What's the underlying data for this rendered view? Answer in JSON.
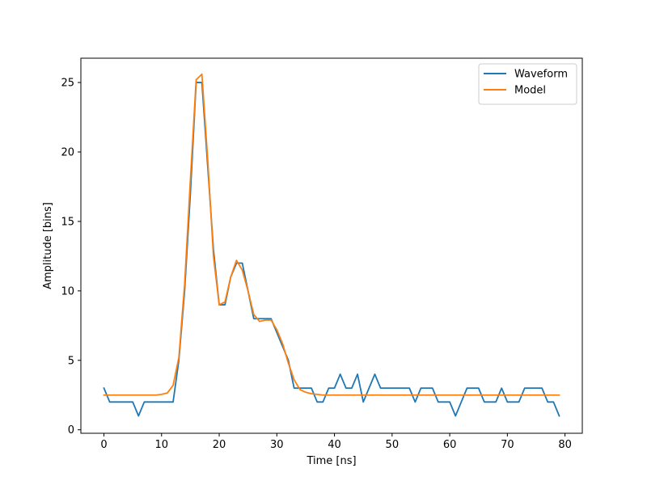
{
  "chart_data": {
    "type": "line",
    "xlabel": "Time [ns]",
    "ylabel": "Amplitude [bins]",
    "xlim": [
      -4,
      83
    ],
    "ylim": [
      -0.25,
      26.75
    ],
    "xticks": [
      0,
      10,
      20,
      30,
      40,
      50,
      60,
      70,
      80
    ],
    "yticks": [
      0,
      5,
      10,
      15,
      20,
      25
    ],
    "grid": false,
    "legend_position": "top-right",
    "series": [
      {
        "name": "Waveform",
        "color": "#1f77b4",
        "x": [
          0,
          1,
          2,
          3,
          4,
          5,
          6,
          7,
          8,
          9,
          10,
          11,
          12,
          13,
          14,
          15,
          16,
          17,
          18,
          19,
          20,
          21,
          22,
          23,
          24,
          25,
          26,
          27,
          28,
          29,
          30,
          31,
          32,
          33,
          34,
          35,
          36,
          37,
          38,
          39,
          40,
          41,
          42,
          43,
          44,
          45,
          46,
          47,
          48,
          49,
          50,
          51,
          52,
          53,
          54,
          55,
          56,
          57,
          58,
          59,
          60,
          61,
          62,
          63,
          64,
          65,
          66,
          67,
          68,
          69,
          70,
          71,
          72,
          73,
          74,
          75,
          76,
          77,
          78,
          79
        ],
        "values": [
          3,
          2,
          2,
          2,
          2,
          2,
          1,
          2,
          2,
          2,
          2,
          2,
          2,
          5,
          10,
          17,
          25,
          25,
          19,
          13,
          9,
          9,
          11,
          12,
          12,
          10,
          8,
          8,
          8,
          8,
          7,
          6,
          5,
          3,
          3,
          3,
          3,
          2,
          2,
          3,
          3,
          4,
          3,
          3,
          4,
          2,
          3,
          4,
          3,
          3,
          3,
          3,
          3,
          3,
          2,
          3,
          3,
          3,
          2,
          2,
          2,
          1,
          2,
          3,
          3,
          3,
          2,
          2,
          2,
          3,
          2,
          2,
          2,
          3,
          3,
          3,
          3,
          2,
          2,
          1
        ]
      },
      {
        "name": "Model",
        "color": "#ff7f0e",
        "x": [
          0,
          1,
          2,
          3,
          4,
          5,
          6,
          7,
          8,
          9,
          10,
          11,
          12,
          13,
          14,
          15,
          16,
          17,
          18,
          19,
          20,
          21,
          22,
          23,
          24,
          25,
          26,
          27,
          28,
          29,
          30,
          31,
          32,
          33,
          34,
          35,
          36,
          37,
          38,
          39,
          40,
          41,
          42,
          43,
          44,
          45,
          46,
          47,
          48,
          49,
          50,
          51,
          52,
          53,
          54,
          55,
          56,
          57,
          58,
          59,
          60,
          61,
          62,
          63,
          64,
          65,
          66,
          67,
          68,
          69,
          70,
          71,
          72,
          73,
          74,
          75,
          76,
          77,
          78,
          79
        ],
        "values": [
          2.5,
          2.5,
          2.5,
          2.5,
          2.5,
          2.5,
          2.5,
          2.5,
          2.5,
          2.5,
          2.55,
          2.65,
          3.2,
          5.2,
          10.5,
          18,
          25.2,
          25.6,
          19.5,
          12.5,
          9,
          9.2,
          11,
          12.2,
          11.5,
          10,
          8.3,
          7.8,
          7.9,
          7.9,
          7.2,
          6.2,
          4.8,
          3.6,
          2.9,
          2.7,
          2.6,
          2.55,
          2.5,
          2.5,
          2.5,
          2.5,
          2.5,
          2.5,
          2.5,
          2.5,
          2.5,
          2.5,
          2.5,
          2.5,
          2.5,
          2.5,
          2.5,
          2.5,
          2.5,
          2.5,
          2.5,
          2.5,
          2.5,
          2.5,
          2.5,
          2.5,
          2.5,
          2.5,
          2.5,
          2.5,
          2.5,
          2.5,
          2.5,
          2.5,
          2.5,
          2.5,
          2.5,
          2.5,
          2.5,
          2.5,
          2.5,
          2.5,
          2.5,
          2.5
        ]
      }
    ]
  }
}
